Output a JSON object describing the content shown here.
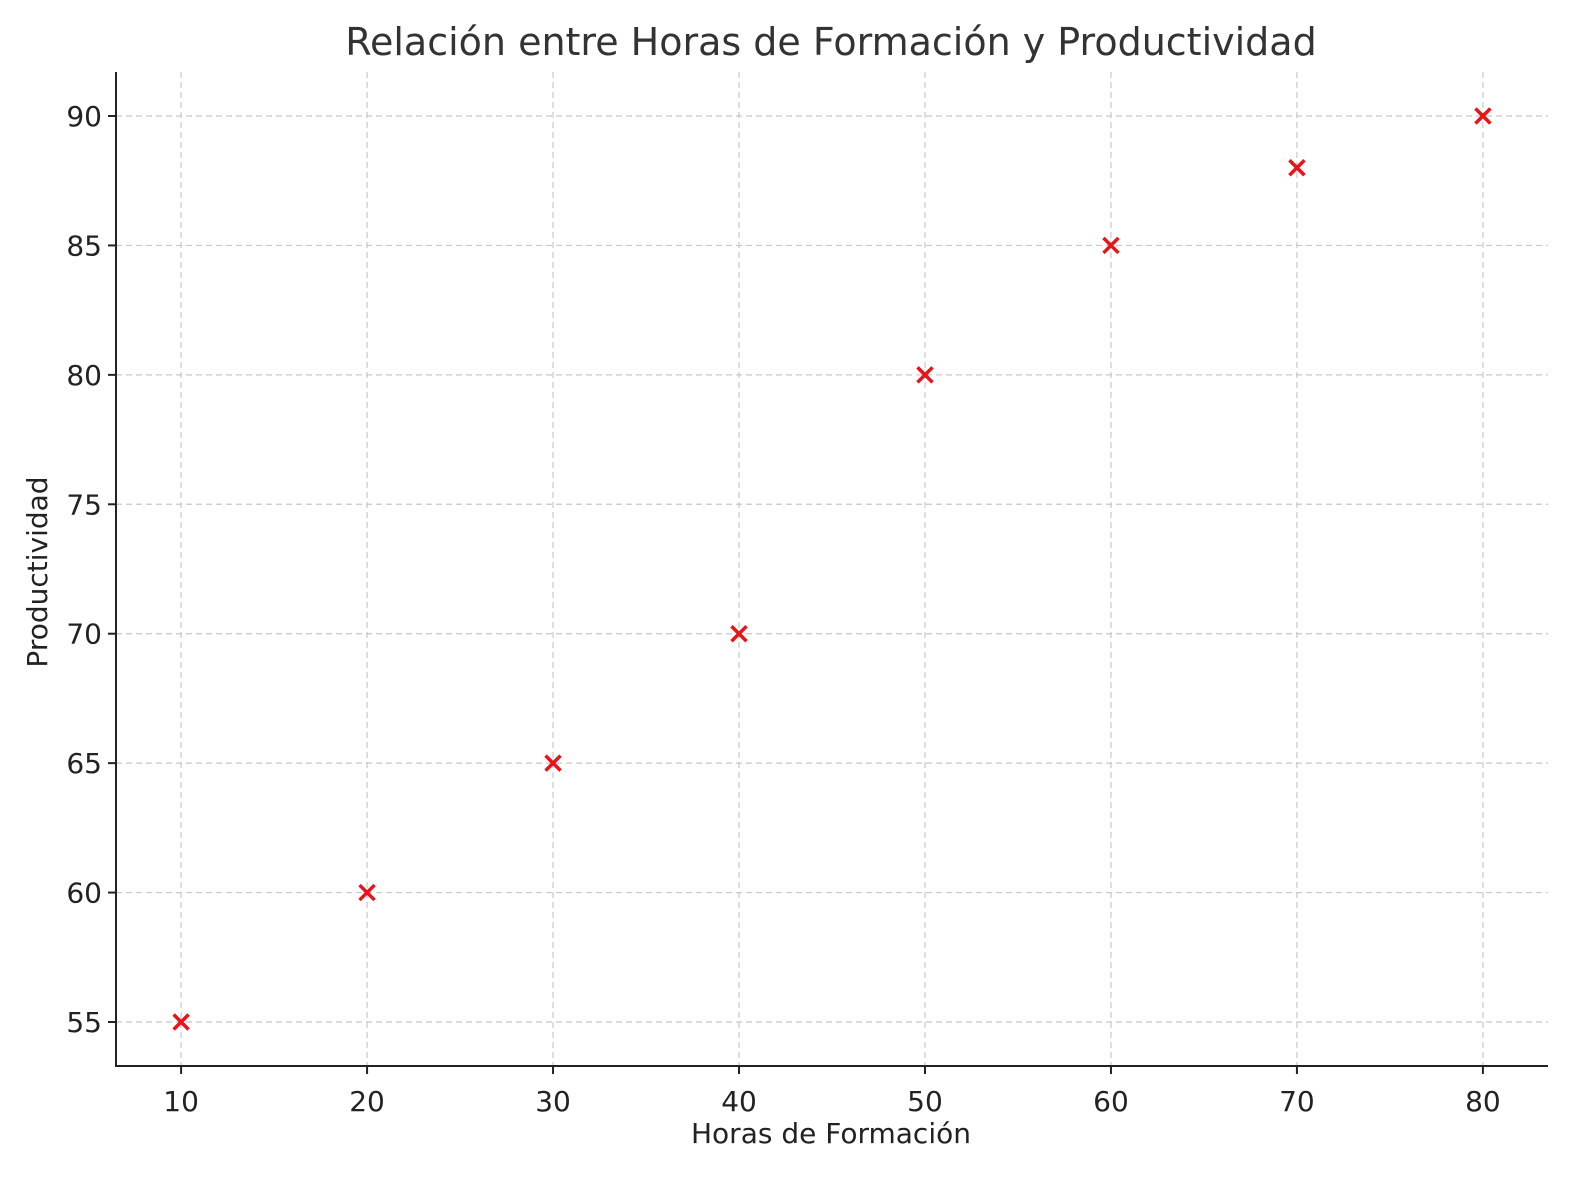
{
  "chart_data": {
    "type": "scatter",
    "title": "Relación entre Horas de Formación y Productividad",
    "xlabel": "Horas de Formación",
    "ylabel": "Productividad",
    "x": [
      10,
      20,
      30,
      40,
      50,
      60,
      70,
      80
    ],
    "y": [
      55,
      60,
      65,
      70,
      80,
      85,
      88,
      90
    ],
    "xlim": [
      6.5,
      83.5
    ],
    "ylim": [
      53.3,
      91.7
    ],
    "xticks": [
      10,
      20,
      30,
      40,
      50,
      60,
      70,
      80
    ],
    "yticks": [
      55,
      60,
      65,
      70,
      75,
      80,
      85,
      90
    ],
    "marker": "x",
    "marker_color": "#e8141a",
    "grid": true,
    "legend": false
  }
}
